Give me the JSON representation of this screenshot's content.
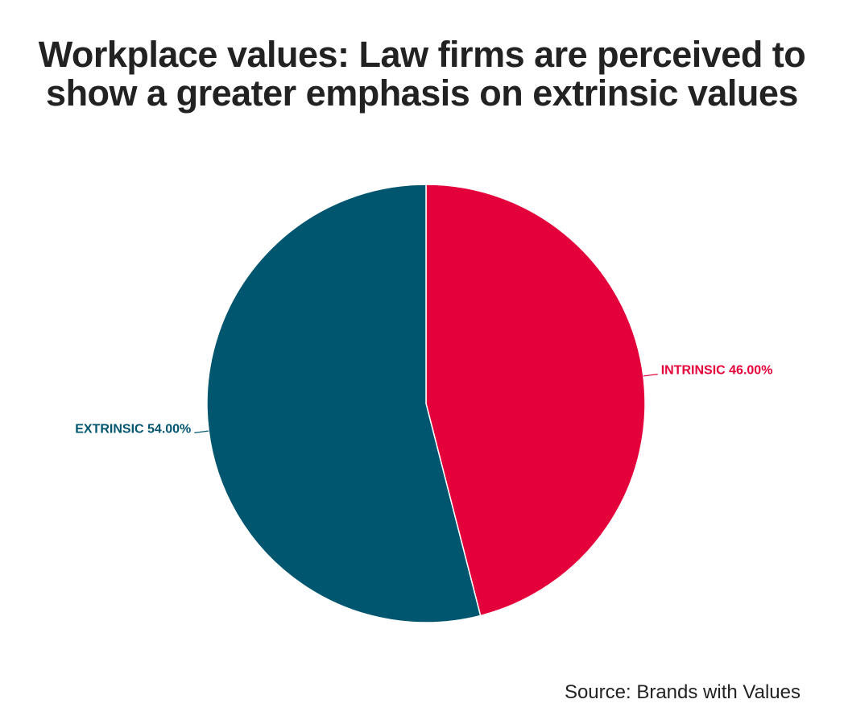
{
  "chart_data": {
    "type": "pie",
    "title": "Workplace values: Law firms are perceived to show a greater emphasis on extrinsic values",
    "categories": [
      "INTRINSIC",
      "EXTRINSIC"
    ],
    "values": [
      46,
      54
    ],
    "value_labels": [
      "46.00%",
      "54.00%"
    ],
    "colors": [
      "#e4003b",
      "#00556f"
    ],
    "source": "Source: Brands with Values"
  }
}
